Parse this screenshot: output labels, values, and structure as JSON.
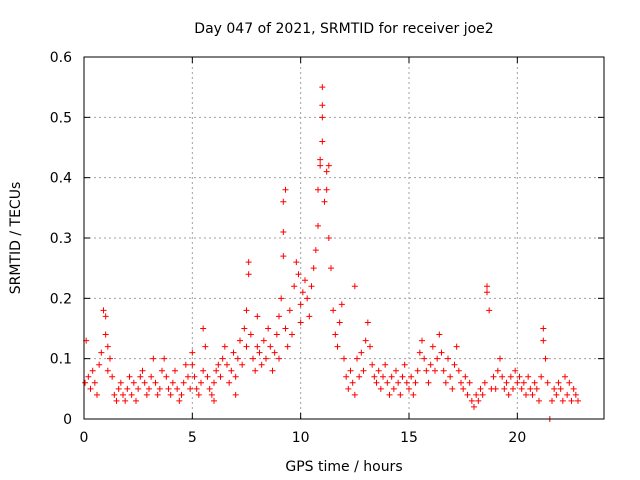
{
  "chart_data": {
    "type": "scatter",
    "title": "Day 047 of 2021, SRMTID for receiver joe2",
    "xlabel": "GPS time / hours",
    "ylabel": "SRMTID / TECUs",
    "xlim": [
      0,
      24
    ],
    "ylim": [
      0,
      0.6
    ],
    "xticks": [
      0,
      5,
      10,
      15,
      20
    ],
    "yticks": [
      0,
      0.1,
      0.2,
      0.3,
      0.4,
      0.5,
      0.6
    ],
    "xtick_labels": [
      "0",
      "5",
      "10",
      "15",
      "20"
    ],
    "ytick_labels": [
      "0",
      "0.1",
      "0.2",
      "0.3",
      "0.4",
      "0.5",
      "0.6"
    ],
    "grid": true,
    "marker": "+",
    "series": [
      {
        "name": "SRMTID",
        "color": "#ff0000",
        "points": [
          [
            0.05,
            0.06
          ],
          [
            0.1,
            0.13
          ],
          [
            0.2,
            0.07
          ],
          [
            0.3,
            0.05
          ],
          [
            0.4,
            0.08
          ],
          [
            0.5,
            0.06
          ],
          [
            0.6,
            0.04
          ],
          [
            0.7,
            0.09
          ],
          [
            0.8,
            0.11
          ],
          [
            0.9,
            0.18
          ],
          [
            1.0,
            0.17
          ],
          [
            1.0,
            0.14
          ],
          [
            1.1,
            0.12
          ],
          [
            1.1,
            0.08
          ],
          [
            1.2,
            0.1
          ],
          [
            1.3,
            0.07
          ],
          [
            1.4,
            0.04
          ],
          [
            1.5,
            0.03
          ],
          [
            1.6,
            0.05
          ],
          [
            1.7,
            0.06
          ],
          [
            1.8,
            0.04
          ],
          [
            1.9,
            0.03
          ],
          [
            2.0,
            0.05
          ],
          [
            2.1,
            0.07
          ],
          [
            2.2,
            0.04
          ],
          [
            2.3,
            0.06
          ],
          [
            2.4,
            0.03
          ],
          [
            2.5,
            0.05
          ],
          [
            2.6,
            0.07
          ],
          [
            2.7,
            0.08
          ],
          [
            2.8,
            0.06
          ],
          [
            2.9,
            0.04
          ],
          [
            3.0,
            0.05
          ],
          [
            3.1,
            0.07
          ],
          [
            3.2,
            0.1
          ],
          [
            3.3,
            0.06
          ],
          [
            3.4,
            0.04
          ],
          [
            3.5,
            0.05
          ],
          [
            3.6,
            0.08
          ],
          [
            3.7,
            0.1
          ],
          [
            3.8,
            0.07
          ],
          [
            3.9,
            0.05
          ],
          [
            4.0,
            0.04
          ],
          [
            4.1,
            0.06
          ],
          [
            4.2,
            0.08
          ],
          [
            4.3,
            0.05
          ],
          [
            4.4,
            0.03
          ],
          [
            4.5,
            0.04
          ],
          [
            4.6,
            0.06
          ],
          [
            4.7,
            0.09
          ],
          [
            4.8,
            0.07
          ],
          [
            4.9,
            0.05
          ],
          [
            5.0,
            0.11
          ],
          [
            5.0,
            0.09
          ],
          [
            5.1,
            0.07
          ],
          [
            5.2,
            0.05
          ],
          [
            5.3,
            0.04
          ],
          [
            5.4,
            0.06
          ],
          [
            5.5,
            0.08
          ],
          [
            5.5,
            0.15
          ],
          [
            5.6,
            0.12
          ],
          [
            5.7,
            0.07
          ],
          [
            5.8,
            0.05
          ],
          [
            5.9,
            0.04
          ],
          [
            6.0,
            0.03
          ],
          [
            6.0,
            0.06
          ],
          [
            6.1,
            0.08
          ],
          [
            6.2,
            0.09
          ],
          [
            6.3,
            0.07
          ],
          [
            6.4,
            0.1
          ],
          [
            6.5,
            0.12
          ],
          [
            6.6,
            0.09
          ],
          [
            6.7,
            0.06
          ],
          [
            6.8,
            0.08
          ],
          [
            6.9,
            0.11
          ],
          [
            7.0,
            0.07
          ],
          [
            7.0,
            0.04
          ],
          [
            7.1,
            0.1
          ],
          [
            7.2,
            0.13
          ],
          [
            7.3,
            0.09
          ],
          [
            7.4,
            0.15
          ],
          [
            7.5,
            0.12
          ],
          [
            7.5,
            0.18
          ],
          [
            7.6,
            0.24
          ],
          [
            7.6,
            0.26
          ],
          [
            7.7,
            0.14
          ],
          [
            7.8,
            0.1
          ],
          [
            7.9,
            0.08
          ],
          [
            8.0,
            0.12
          ],
          [
            8.0,
            0.17
          ],
          [
            8.1,
            0.11
          ],
          [
            8.2,
            0.09
          ],
          [
            8.3,
            0.13
          ],
          [
            8.4,
            0.1
          ],
          [
            8.5,
            0.15
          ],
          [
            8.6,
            0.12
          ],
          [
            8.7,
            0.08
          ],
          [
            8.8,
            0.11
          ],
          [
            8.9,
            0.14
          ],
          [
            9.0,
            0.1
          ],
          [
            9.0,
            0.17
          ],
          [
            9.1,
            0.2
          ],
          [
            9.2,
            0.27
          ],
          [
            9.2,
            0.31
          ],
          [
            9.2,
            0.36
          ],
          [
            9.3,
            0.38
          ],
          [
            9.3,
            0.15
          ],
          [
            9.4,
            0.12
          ],
          [
            9.5,
            0.18
          ],
          [
            9.6,
            0.14
          ],
          [
            9.7,
            0.22
          ],
          [
            9.8,
            0.26
          ],
          [
            9.9,
            0.24
          ],
          [
            10.0,
            0.19
          ],
          [
            10.0,
            0.16
          ],
          [
            10.1,
            0.21
          ],
          [
            10.2,
            0.23
          ],
          [
            10.3,
            0.2
          ],
          [
            10.4,
            0.17
          ],
          [
            10.5,
            0.22
          ],
          [
            10.6,
            0.25
          ],
          [
            10.7,
            0.28
          ],
          [
            10.8,
            0.32
          ],
          [
            10.8,
            0.38
          ],
          [
            10.9,
            0.42
          ],
          [
            10.9,
            0.43
          ],
          [
            11.0,
            0.46
          ],
          [
            11.0,
            0.5
          ],
          [
            11.0,
            0.52
          ],
          [
            11.0,
            0.55
          ],
          [
            11.1,
            0.36
          ],
          [
            11.2,
            0.41
          ],
          [
            11.2,
            0.38
          ],
          [
            11.3,
            0.3
          ],
          [
            11.3,
            0.42
          ],
          [
            11.4,
            0.25
          ],
          [
            11.5,
            0.18
          ],
          [
            11.6,
            0.14
          ],
          [
            11.7,
            0.12
          ],
          [
            11.8,
            0.16
          ],
          [
            11.9,
            0.19
          ],
          [
            12.0,
            0.1
          ],
          [
            12.1,
            0.07
          ],
          [
            12.2,
            0.05
          ],
          [
            12.3,
            0.08
          ],
          [
            12.4,
            0.06
          ],
          [
            12.5,
            0.04
          ],
          [
            12.5,
            0.22
          ],
          [
            12.6,
            0.1
          ],
          [
            12.7,
            0.07
          ],
          [
            12.8,
            0.11
          ],
          [
            12.9,
            0.08
          ],
          [
            13.0,
            0.13
          ],
          [
            13.1,
            0.16
          ],
          [
            13.2,
            0.12
          ],
          [
            13.3,
            0.09
          ],
          [
            13.4,
            0.07
          ],
          [
            13.5,
            0.06
          ],
          [
            13.6,
            0.08
          ],
          [
            13.7,
            0.05
          ],
          [
            13.8,
            0.07
          ],
          [
            13.9,
            0.09
          ],
          [
            14.0,
            0.06
          ],
          [
            14.1,
            0.04
          ],
          [
            14.2,
            0.07
          ],
          [
            14.3,
            0.05
          ],
          [
            14.4,
            0.08
          ],
          [
            14.5,
            0.06
          ],
          [
            14.6,
            0.04
          ],
          [
            14.7,
            0.07
          ],
          [
            14.8,
            0.09
          ],
          [
            14.9,
            0.06
          ],
          [
            15.0,
            0.05
          ],
          [
            15.1,
            0.07
          ],
          [
            15.2,
            0.04
          ],
          [
            15.3,
            0.06
          ],
          [
            15.4,
            0.08
          ],
          [
            15.5,
            0.11
          ],
          [
            15.6,
            0.13
          ],
          [
            15.7,
            0.1
          ],
          [
            15.8,
            0.08
          ],
          [
            15.9,
            0.06
          ],
          [
            16.0,
            0.09
          ],
          [
            16.1,
            0.12
          ],
          [
            16.2,
            0.08
          ],
          [
            16.3,
            0.1
          ],
          [
            16.4,
            0.14
          ],
          [
            16.5,
            0.11
          ],
          [
            16.6,
            0.08
          ],
          [
            16.7,
            0.06
          ],
          [
            16.8,
            0.1
          ],
          [
            16.9,
            0.07
          ],
          [
            17.0,
            0.05
          ],
          [
            17.1,
            0.09
          ],
          [
            17.2,
            0.12
          ],
          [
            17.3,
            0.08
          ],
          [
            17.4,
            0.06
          ],
          [
            17.5,
            0.05
          ],
          [
            17.6,
            0.07
          ],
          [
            17.7,
            0.04
          ],
          [
            17.8,
            0.06
          ],
          [
            17.9,
            0.03
          ],
          [
            18.0,
            0.02
          ],
          [
            18.1,
            0.04
          ],
          [
            18.2,
            0.03
          ],
          [
            18.3,
            0.05
          ],
          [
            18.4,
            0.04
          ],
          [
            18.5,
            0.06
          ],
          [
            18.6,
            0.22
          ],
          [
            18.6,
            0.21
          ],
          [
            18.7,
            0.18
          ],
          [
            18.8,
            0.05
          ],
          [
            18.9,
            0.07
          ],
          [
            19.0,
            0.05
          ],
          [
            19.1,
            0.08
          ],
          [
            19.2,
            0.1
          ],
          [
            19.3,
            0.07
          ],
          [
            19.4,
            0.05
          ],
          [
            19.5,
            0.06
          ],
          [
            19.6,
            0.04
          ],
          [
            19.7,
            0.07
          ],
          [
            19.8,
            0.05
          ],
          [
            19.9,
            0.08
          ],
          [
            20.0,
            0.06
          ],
          [
            20.1,
            0.07
          ],
          [
            20.2,
            0.05
          ],
          [
            20.3,
            0.06
          ],
          [
            20.4,
            0.04
          ],
          [
            20.5,
            0.07
          ],
          [
            20.6,
            0.05
          ],
          [
            20.7,
            0.04
          ],
          [
            20.8,
            0.06
          ],
          [
            20.9,
            0.05
          ],
          [
            21.0,
            0.03
          ],
          [
            21.1,
            0.07
          ],
          [
            21.2,
            0.13
          ],
          [
            21.2,
            0.15
          ],
          [
            21.3,
            0.1
          ],
          [
            21.4,
            0.06
          ],
          [
            21.5,
            0.0
          ],
          [
            21.6,
            0.03
          ],
          [
            21.7,
            0.05
          ],
          [
            21.8,
            0.04
          ],
          [
            21.9,
            0.06
          ],
          [
            22.0,
            0.05
          ],
          [
            22.1,
            0.03
          ],
          [
            22.2,
            0.07
          ],
          [
            22.3,
            0.04
          ],
          [
            22.4,
            0.06
          ],
          [
            22.5,
            0.03
          ],
          [
            22.6,
            0.05
          ],
          [
            22.7,
            0.04
          ],
          [
            22.8,
            0.03
          ]
        ]
      }
    ]
  }
}
